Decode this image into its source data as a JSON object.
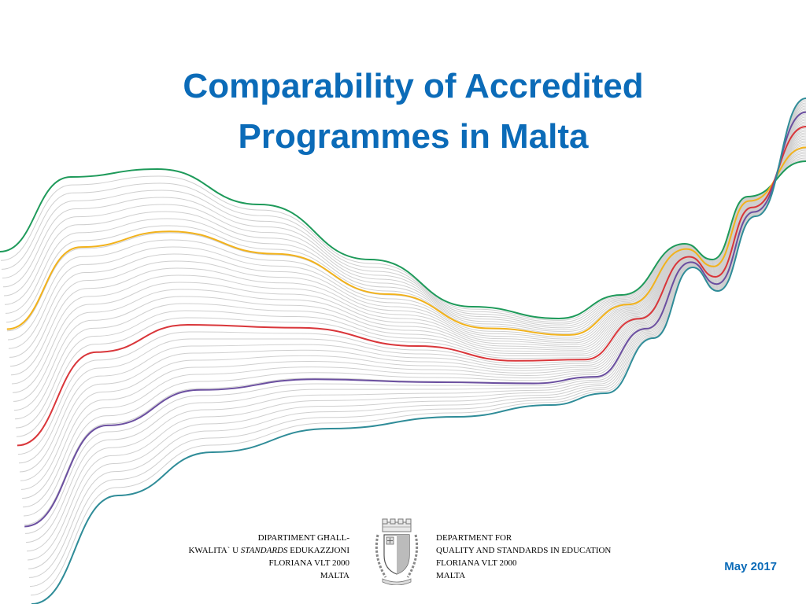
{
  "slide": {
    "title_line1": "Comparability of Accredited",
    "title_line2": "Programmes in Malta",
    "date": "May 2017"
  },
  "footer": {
    "maltese": {
      "line1": "DIPARTIMENT GĦALL-",
      "line2_a": "KWALITA` U ",
      "line2_b": "STANDARDS",
      "line2_c": " EDUKAZZJONI",
      "line3": "FLORIANA  VLT 2000",
      "line4": "MALTA"
    },
    "english": {
      "line1": "DEPARTMENT FOR",
      "line2": "QUALITY AND STANDARDS IN EDUCATION",
      "line3": "FLORIANA  VLT 2000",
      "line4": "MALTA"
    }
  },
  "colors": {
    "title": "#0b6bb8",
    "wave_green": "#1e9a5a",
    "wave_yellow": "#f2b21b",
    "wave_red": "#d9363a",
    "wave_purple": "#6b4fa0",
    "wave_teal": "#2f8c98",
    "wave_grey": "#c8c8c8"
  },
  "icons": {
    "emblem": "malta-coat-of-arms-icon"
  }
}
